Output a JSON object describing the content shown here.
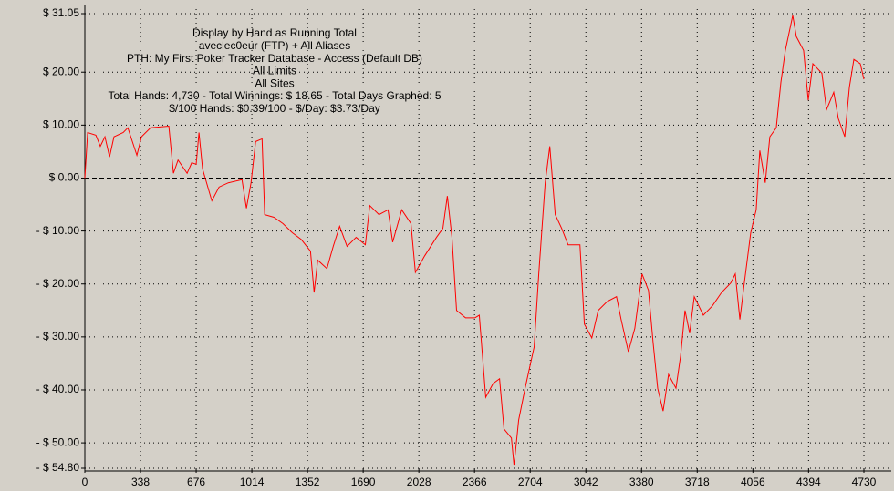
{
  "chart_data": {
    "type": "line",
    "annotations": [
      "Display by Hand as Running Total",
      "aveclec0eur (FTP) + All Aliases",
      "PTH: My First Poker Tracker Database - Access (Default DB)",
      "All Limits",
      "All Sites",
      "Total Hands: 4,730 - Total Winnings: $ 18.65 - Total Days Graphed: 5",
      "$/100 Hands: $0.39/100 - $/Day: $3.73/Day"
    ],
    "x": [
      0,
      17,
      67,
      94,
      122,
      150,
      177,
      233,
      261,
      316,
      344,
      399,
      510,
      538,
      566,
      621,
      649,
      676,
      693,
      715,
      771,
      815,
      871,
      954,
      981,
      1009,
      1037,
      1076,
      1092,
      1148,
      1203,
      1259,
      1314,
      1370,
      1392,
      1414,
      1470,
      1508,
      1547,
      1592,
      1647,
      1703,
      1730,
      1786,
      1841,
      1869,
      1924,
      1980,
      2007,
      2063,
      2135,
      2174,
      2201,
      2229,
      2257,
      2312,
      2368,
      2395,
      2434,
      2479,
      2518,
      2545,
      2590,
      2606,
      2634,
      2673,
      2728,
      2756,
      2795,
      2823,
      2856,
      2895,
      2934,
      3006,
      3033,
      3078,
      3117,
      3172,
      3228,
      3256,
      3300,
      3339,
      3383,
      3422,
      3450,
      3478,
      3511,
      3544,
      3589,
      3617,
      3644,
      3672,
      3700,
      3755,
      3811,
      3866,
      3922,
      3949,
      3977,
      4004,
      4043,
      4076,
      4098,
      4131,
      4159,
      4198,
      4226,
      4253,
      4298,
      4320,
      4364,
      4392,
      4420,
      4475,
      4503,
      4547,
      4575,
      4614,
      4642,
      4669,
      4708,
      4730
    ],
    "series": [
      {
        "color": "#ff0000",
        "values": [
          0,
          8.6,
          8.1,
          6.0,
          7.8,
          4.0,
          7.8,
          8.6,
          9.5,
          4.3,
          7.8,
          9.5,
          9.8,
          0.9,
          3.4,
          0.9,
          2.9,
          2.6,
          8.6,
          1.7,
          -4.3,
          -1.7,
          -0.9,
          -0.3,
          -5.7,
          -0.9,
          6.9,
          7.4,
          -6.9,
          -7.4,
          -8.6,
          -10.3,
          -11.6,
          -13.8,
          -21.6,
          -15.5,
          -17.1,
          -12.9,
          -9.1,
          -12.9,
          -11.2,
          -12.6,
          -5.2,
          -6.9,
          -6.0,
          -12.1,
          -6.0,
          -8.6,
          -17.8,
          -14.7,
          -11.2,
          -9.5,
          -3.4,
          -11.2,
          -25.0,
          -26.4,
          -26.4,
          -25.9,
          -41.4,
          -38.8,
          -37.9,
          -47.4,
          -49.1,
          -54.3,
          -45.7,
          -39.7,
          -31.9,
          -18.1,
          -0.9,
          6.0,
          -6.9,
          -9.5,
          -12.6,
          -12.6,
          -27.6,
          -30.2,
          -25.0,
          -23.3,
          -22.4,
          -26.7,
          -32.8,
          -28.4,
          -18.1,
          -21.2,
          -31.0,
          -39.7,
          -44.0,
          -37.1,
          -39.7,
          -33.6,
          -25.0,
          -29.3,
          -22.4,
          -25.9,
          -24.1,
          -21.6,
          -19.8,
          -18.1,
          -26.7,
          -19.8,
          -10.3,
          -6.0,
          5.2,
          -0.9,
          7.8,
          9.5,
          18.1,
          24.1,
          30.7,
          26.7,
          24.1,
          14.7,
          21.6,
          19.8,
          12.9,
          16.2,
          11.2,
          7.8,
          17.2,
          22.4,
          21.6,
          18.65
        ]
      }
    ],
    "xlim": [
      0,
      4730
    ],
    "xticks": [
      0,
      338,
      676,
      1014,
      1352,
      1690,
      2028,
      2366,
      2704,
      3042,
      3380,
      3718,
      4056,
      4394,
      4730
    ],
    "ylim": [
      -54.8,
      31.05
    ],
    "yticks": [
      {
        "value": 31.05,
        "label": "$ 31.05"
      },
      {
        "value": 20,
        "label": "$ 20.00"
      },
      {
        "value": 10,
        "label": "$ 10.00"
      },
      {
        "value": 0,
        "label": "$ 0.00"
      },
      {
        "value": -10,
        "label": "- $ 10.00"
      },
      {
        "value": -20,
        "label": "- $ 20.00"
      },
      {
        "value": -30,
        "label": "- $ 30.00"
      },
      {
        "value": -40,
        "label": "- $ 40.00"
      },
      {
        "value": -50,
        "label": "- $ 50.00"
      },
      {
        "value": -54.8,
        "label": "- $ 54.80"
      }
    ],
    "grid": true
  }
}
